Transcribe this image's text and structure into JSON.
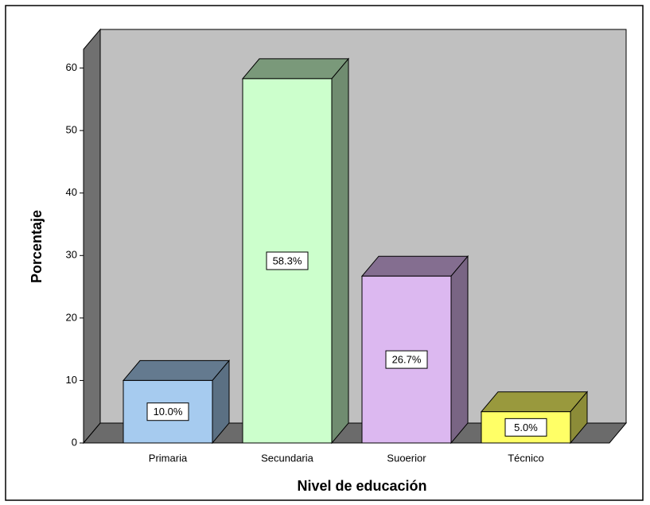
{
  "chart_data": {
    "type": "bar3d",
    "categories": [
      "Primaria",
      "Secundaria",
      "Suoerior",
      "Técnico"
    ],
    "values": [
      10.0,
      58.3,
      26.7,
      5.0
    ],
    "value_labels": [
      "10.0%",
      "58.3%",
      "26.7%",
      "5.0%"
    ],
    "colors": [
      "#a6cbef",
      "#ccffcc",
      "#dcb8f0",
      "#ffff66"
    ],
    "ylim": [
      0,
      63
    ],
    "yticks": [
      0,
      10,
      20,
      30,
      40,
      50,
      60
    ],
    "xlabel": "Nivel de educación",
    "ylabel": "Porcentaje"
  }
}
